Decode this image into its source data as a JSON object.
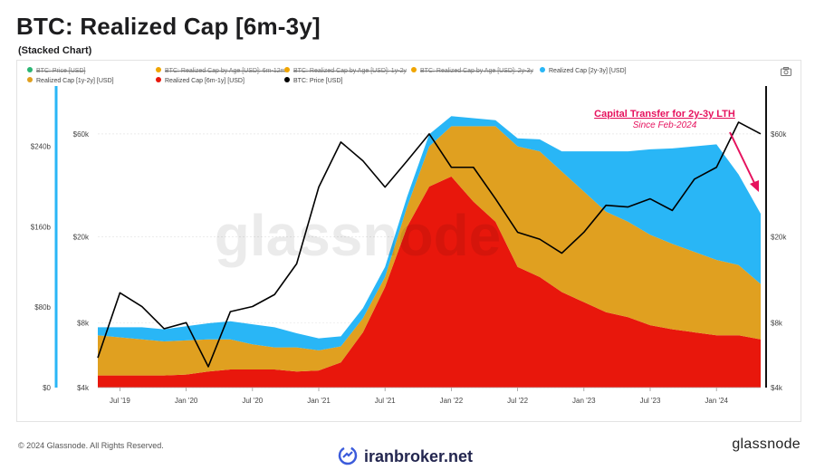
{
  "header": {
    "title": "BTC: Realized Cap [6m-3y]",
    "subtitle": "(Stacked Chart)"
  },
  "legend": [
    {
      "label": "BTC: Price [USD]",
      "color": "#2bb673",
      "active": false
    },
    {
      "label": "BTC: Realized Cap by Age [USD]: 6m-12m",
      "color": "#f0a500",
      "active": false
    },
    {
      "label": "BTC: Realized Cap by Age [USD]: 1y-2y",
      "color": "#f0a500",
      "active": false
    },
    {
      "label": "BTC: Realized Cap by Age [USD]: 2y-3y",
      "color": "#f0a500",
      "active": false
    },
    {
      "label": "Realized Cap [2y-3y] [USD]",
      "color": "#29b6f6",
      "active": true
    },
    {
      "label": "Realized Cap [1y-2y] [USD]",
      "color": "#e0a020",
      "active": true
    },
    {
      "label": "Realized Cap [6m-1y] [USD]",
      "color": "#e8170c",
      "active": true
    },
    {
      "label": "BTC: Price [USD]",
      "color": "#000000",
      "active": true
    }
  ],
  "annotation": {
    "line1": "Capital Transfer for 2y-3y LTH",
    "line2": "Since Feb-2024",
    "color": "#e6125e"
  },
  "watermark": "glassnode",
  "footer": {
    "copyright": "© 2024 Glassnode. All Rights Reserved.",
    "brand": "glassnode",
    "partner": "iranbroker.net"
  },
  "chart_data": {
    "type": "area",
    "stacked": true,
    "title": "BTC: Realized Cap [6m-3y]",
    "x": [
      "2019-05",
      "2019-07",
      "2019-09",
      "2019-11",
      "2020-01",
      "2020-03",
      "2020-05",
      "2020-07",
      "2020-09",
      "2020-11",
      "2021-01",
      "2021-03",
      "2021-05",
      "2021-07",
      "2021-09",
      "2021-11",
      "2022-01",
      "2022-03",
      "2022-05",
      "2022-07",
      "2022-09",
      "2022-11",
      "2023-01",
      "2023-03",
      "2023-05",
      "2023-07",
      "2023-09",
      "2023-11",
      "2024-01",
      "2024-03",
      "2024-05"
    ],
    "xticks": [
      "Jul '19",
      "Jan '20",
      "Jul '20",
      "Jan '21",
      "Jul '21",
      "Jan '22",
      "Jul '22",
      "Jan '23",
      "Jul '23",
      "Jan '24"
    ],
    "yticks_left": [
      "$0",
      "$80b",
      "$160b",
      "$240b"
    ],
    "yticks_right": [
      "$4k",
      "$8k",
      "$20k",
      "$60k"
    ],
    "ylim_left": [
      0,
      300
    ],
    "series": [
      {
        "name": "Realized Cap [6m-1y] [USD]",
        "color": "#e8170c",
        "values": [
          12,
          12,
          12,
          12,
          13,
          16,
          18,
          18,
          18,
          16,
          17,
          25,
          55,
          100,
          160,
          200,
          210,
          185,
          165,
          120,
          110,
          95,
          85,
          75,
          70,
          62,
          58,
          55,
          52,
          52,
          48
        ]
      },
      {
        "name": "Realized Cap [1y-2y] [USD]",
        "color": "#e0a020",
        "values": [
          40,
          38,
          36,
          34,
          34,
          32,
          30,
          25,
          22,
          24,
          20,
          16,
          14,
          10,
          20,
          40,
          50,
          75,
          95,
          120,
          125,
          120,
          110,
          100,
          95,
          90,
          85,
          80,
          75,
          70,
          55
        ]
      },
      {
        "name": "Realized Cap [2y-3y] [USD]",
        "color": "#29b6f6",
        "values": [
          8,
          10,
          12,
          12,
          14,
          16,
          18,
          20,
          20,
          14,
          12,
          10,
          10,
          10,
          10,
          12,
          10,
          8,
          6,
          8,
          12,
          20,
          40,
          60,
          70,
          85,
          95,
          105,
          115,
          90,
          70
        ]
      }
    ],
    "price_series": {
      "name": "BTC: Price [USD]",
      "color": "#000000",
      "values": [
        5500,
        11000,
        9500,
        7500,
        8000,
        5000,
        9000,
        9500,
        10800,
        15000,
        34000,
        55000,
        45000,
        34000,
        45000,
        60000,
        42000,
        42000,
        30000,
        21000,
        19500,
        16800,
        21000,
        28000,
        27500,
        30000,
        26500,
        37000,
        42000,
        68000,
        60000
      ]
    }
  }
}
